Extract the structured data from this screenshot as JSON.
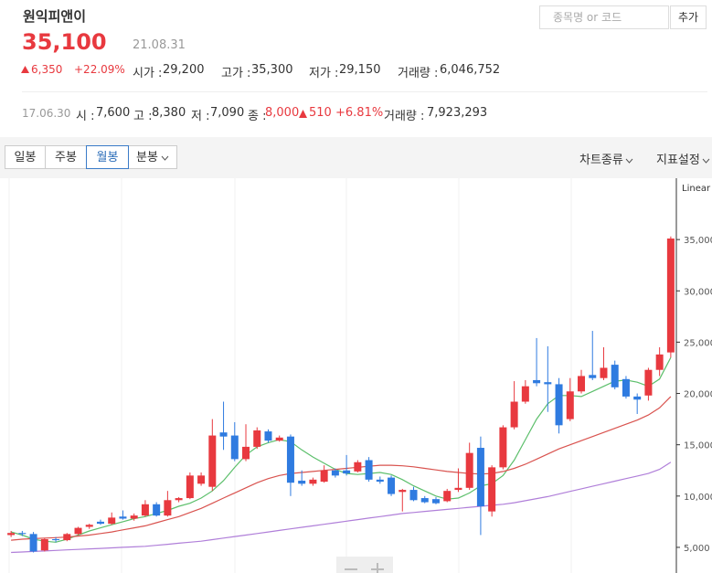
{
  "header": {
    "name": "원익피앤이",
    "price": "35,100",
    "date": "21.08.31",
    "change": "6,350",
    "change_pct": "+22.09%",
    "fields": [
      {
        "label": "시가 :",
        "value": "29,200"
      },
      {
        "label": "고가 :",
        "value": "35,300"
      },
      {
        "label": "저가 :",
        "value": "29,150"
      },
      {
        "label": "거래량 :",
        "value": "6,046,752"
      }
    ],
    "search_placeholder": "종목명 or 코드",
    "add_button": "추가"
  },
  "hover": {
    "date": "17.06.30",
    "fields": [
      {
        "label": "시 :",
        "value": "7,600"
      },
      {
        "label": "고 :",
        "value": "8,380"
      },
      {
        "label": "저 :",
        "value": "7,090"
      },
      {
        "label": "종 :",
        "value": "8,000"
      }
    ],
    "change": "510",
    "change_pct": "+6.81%",
    "volume_label": "거래량 :",
    "volume": "7,923,293"
  },
  "toolbar": {
    "periods": [
      "일봉",
      "주봉",
      "월봉",
      "분봉"
    ],
    "selected": 2,
    "right": [
      "차트종류",
      "지표설정"
    ]
  },
  "chart_data": {
    "type": "candlestick",
    "scale_label": "Linear",
    "up_color": "#e8393f",
    "down_color": "#2f7be0",
    "ylim": [
      2500,
      40000
    ],
    "yticks": [
      {
        "value": 5000,
        "label": "5,000"
      },
      {
        "value": 10000,
        "label": "10,000"
      },
      {
        "value": 15000,
        "label": "15,000"
      },
      {
        "value": 20000,
        "label": "20,000"
      },
      {
        "value": 25000,
        "label": "25,000"
      },
      {
        "value": 30000,
        "label": "30,000"
      },
      {
        "value": 35000,
        "label": "35,000"
      }
    ],
    "open": [
      6200,
      6400,
      6300,
      4700,
      5800,
      5700,
      6300,
      7000,
      7500,
      7300,
      8000,
      7800,
      8100,
      9200,
      8100,
      9600,
      9800,
      11200,
      10900,
      16200,
      15900,
      13600,
      14800,
      16300,
      15400,
      15800,
      11500,
      11200,
      11400,
      12500,
      12500,
      12400,
      13500,
      11600,
      11800,
      10400,
      10600,
      9800,
      9700,
      9500,
      10600,
      10800,
      14700,
      8500,
      12800,
      16700,
      19200,
      21300,
      21100,
      20900,
      17500,
      20200,
      21800,
      21500,
      22800,
      21400,
      19700,
      19800,
      22300,
      24000
    ],
    "high": [
      6600,
      6600,
      6500,
      5900,
      6000,
      6400,
      7000,
      7300,
      7700,
      8400,
      8600,
      8300,
      9600,
      9400,
      10500,
      9900,
      12300,
      12300,
      17500,
      19200,
      17200,
      17000,
      16700,
      16500,
      15900,
      16000,
      12500,
      11800,
      13000,
      12700,
      14000,
      13500,
      13800,
      11900,
      12000,
      10700,
      10900,
      10000,
      9900,
      10700,
      12700,
      15200,
      15800,
      13000,
      16900,
      21200,
      21300,
      25400,
      24600,
      21500,
      21500,
      22300,
      26100,
      24500,
      23200,
      21700,
      20000,
      22500,
      24500,
      35300
    ],
    "low": [
      6000,
      6100,
      4500,
      4600,
      5500,
      5600,
      6200,
      6800,
      7200,
      7200,
      7700,
      7600,
      8000,
      8000,
      8000,
      9400,
      9700,
      11000,
      10500,
      14500,
      13400,
      13400,
      14600,
      15200,
      15300,
      10000,
      11000,
      11000,
      11300,
      11800,
      12000,
      12300,
      11400,
      11200,
      10000,
      8500,
      9500,
      9300,
      9200,
      9400,
      10400,
      10600,
      6200,
      8000,
      12600,
      16500,
      19000,
      20700,
      18200,
      16100,
      17300,
      20000,
      21300,
      21300,
      20400,
      19500,
      18000,
      19300,
      21700,
      23500
    ],
    "close": [
      6400,
      6300,
      4600,
      5800,
      5700,
      6300,
      6900,
      7200,
      7300,
      7900,
      7800,
      8100,
      9200,
      8100,
      9600,
      9800,
      12000,
      12000,
      15900,
      15800,
      13600,
      14800,
      16400,
      15400,
      15700,
      11300,
      11200,
      11600,
      12500,
      12000,
      12200,
      13300,
      11600,
      11400,
      10200,
      10600,
      9600,
      9400,
      9300,
      10500,
      10800,
      14200,
      9000,
      12800,
      16700,
      19200,
      20700,
      21000,
      20900,
      16900,
      20200,
      21700,
      21500,
      22500,
      20600,
      19700,
      19400,
      22300,
      23800,
      35100
    ],
    "series": [
      {
        "color": "#5cbf6b",
        "values": [
          6500,
          6200,
          5800,
          5600,
          5500,
          5800,
          6200,
          6600,
          6900,
          7200,
          7500,
          7800,
          8000,
          8300,
          8600,
          9000,
          9300,
          9800,
          10500,
          11500,
          12800,
          14000,
          14800,
          15200,
          15500,
          15300,
          14500,
          13800,
          13200,
          12600,
          12200,
          12100,
          12200,
          12300,
          12100,
          11600,
          11000,
          10500,
          10000,
          9700,
          9800,
          10300,
          11000,
          11200,
          12000,
          13500,
          15500,
          17500,
          19000,
          19800,
          19800,
          19700,
          20200,
          20700,
          21200,
          21300,
          21100,
          20700,
          21400,
          23500
        ]
      },
      {
        "color": "#d9534f",
        "values": [
          5700,
          5800,
          5850,
          5900,
          5950,
          6000,
          6100,
          6200,
          6350,
          6500,
          6700,
          6900,
          7100,
          7400,
          7700,
          8000,
          8400,
          8800,
          9300,
          9800,
          10300,
          10800,
          11300,
          11700,
          12000,
          12200,
          12300,
          12400,
          12500,
          12600,
          12700,
          12800,
          12900,
          13000,
          13000,
          12950,
          12850,
          12700,
          12550,
          12400,
          12300,
          12200,
          12150,
          12200,
          12400,
          12700,
          13100,
          13600,
          14100,
          14600,
          15000,
          15400,
          15800,
          16200,
          16600,
          17000,
          17400,
          17900,
          18600,
          19700
        ]
      },
      {
        "color": "#b07fd9",
        "values": [
          4500,
          4550,
          4600,
          4650,
          4700,
          4750,
          4800,
          4850,
          4900,
          4950,
          5000,
          5050,
          5100,
          5200,
          5300,
          5400,
          5500,
          5600,
          5750,
          5900,
          6050,
          6200,
          6350,
          6500,
          6650,
          6800,
          6950,
          7100,
          7250,
          7400,
          7550,
          7700,
          7850,
          8000,
          8150,
          8300,
          8400,
          8500,
          8600,
          8700,
          8800,
          8900,
          9000,
          9100,
          9200,
          9350,
          9550,
          9750,
          9950,
          10200,
          10450,
          10700,
          10950,
          11200,
          11450,
          11700,
          11950,
          12200,
          12600,
          13300
        ]
      }
    ]
  }
}
